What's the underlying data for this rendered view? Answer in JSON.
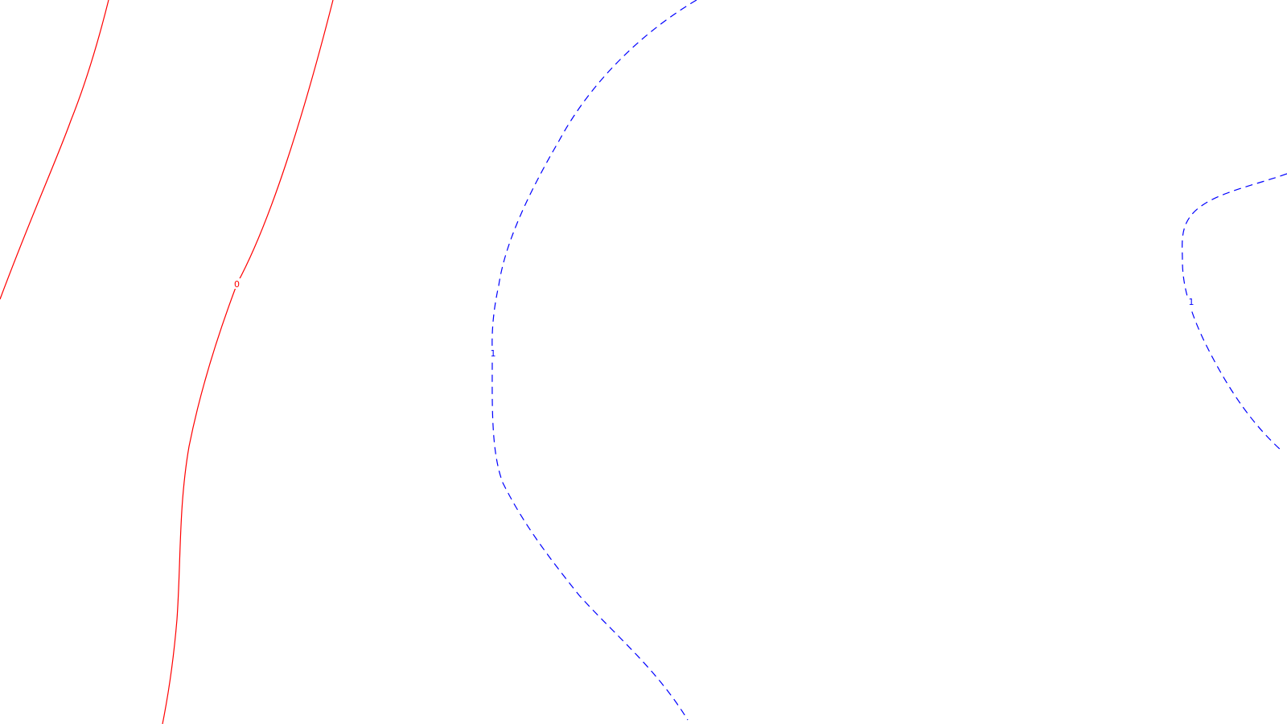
{
  "map": {
    "background_color": "#ffffff",
    "contours": [
      {
        "id": "contour-0-west",
        "level_label": "",
        "color": "#ff0000",
        "style": "solid"
      },
      {
        "id": "contour-0-east",
        "level_label": "0",
        "color": "#ff0000",
        "style": "solid"
      },
      {
        "id": "contour-1-center",
        "level_label": "1",
        "color": "#0000ff",
        "style": "dashed"
      },
      {
        "id": "contour-1-right",
        "level_label": "1",
        "color": "#0000ff",
        "style": "dashed"
      }
    ]
  }
}
